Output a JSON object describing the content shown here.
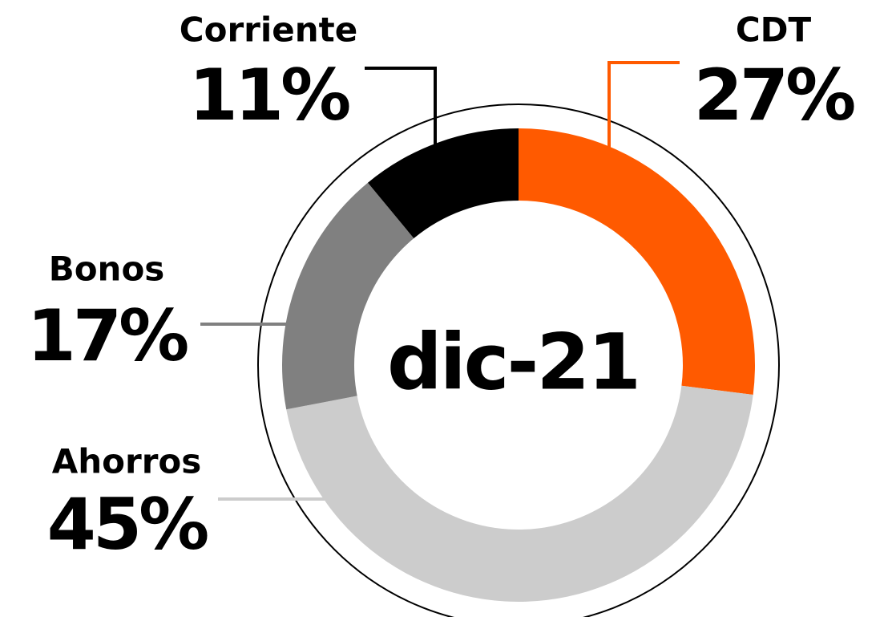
{
  "chart_data": {
    "type": "donut",
    "center_label": "dic-21",
    "categories": [
      "CDT",
      "Ahorros",
      "Bonos",
      "Corriente"
    ],
    "values": [
      27,
      45,
      17,
      11
    ],
    "value_labels": [
      "27%",
      "45%",
      "17%",
      "11%"
    ],
    "colors": [
      "#ff5a00",
      "#cccccc",
      "#808080",
      "#000000"
    ]
  }
}
